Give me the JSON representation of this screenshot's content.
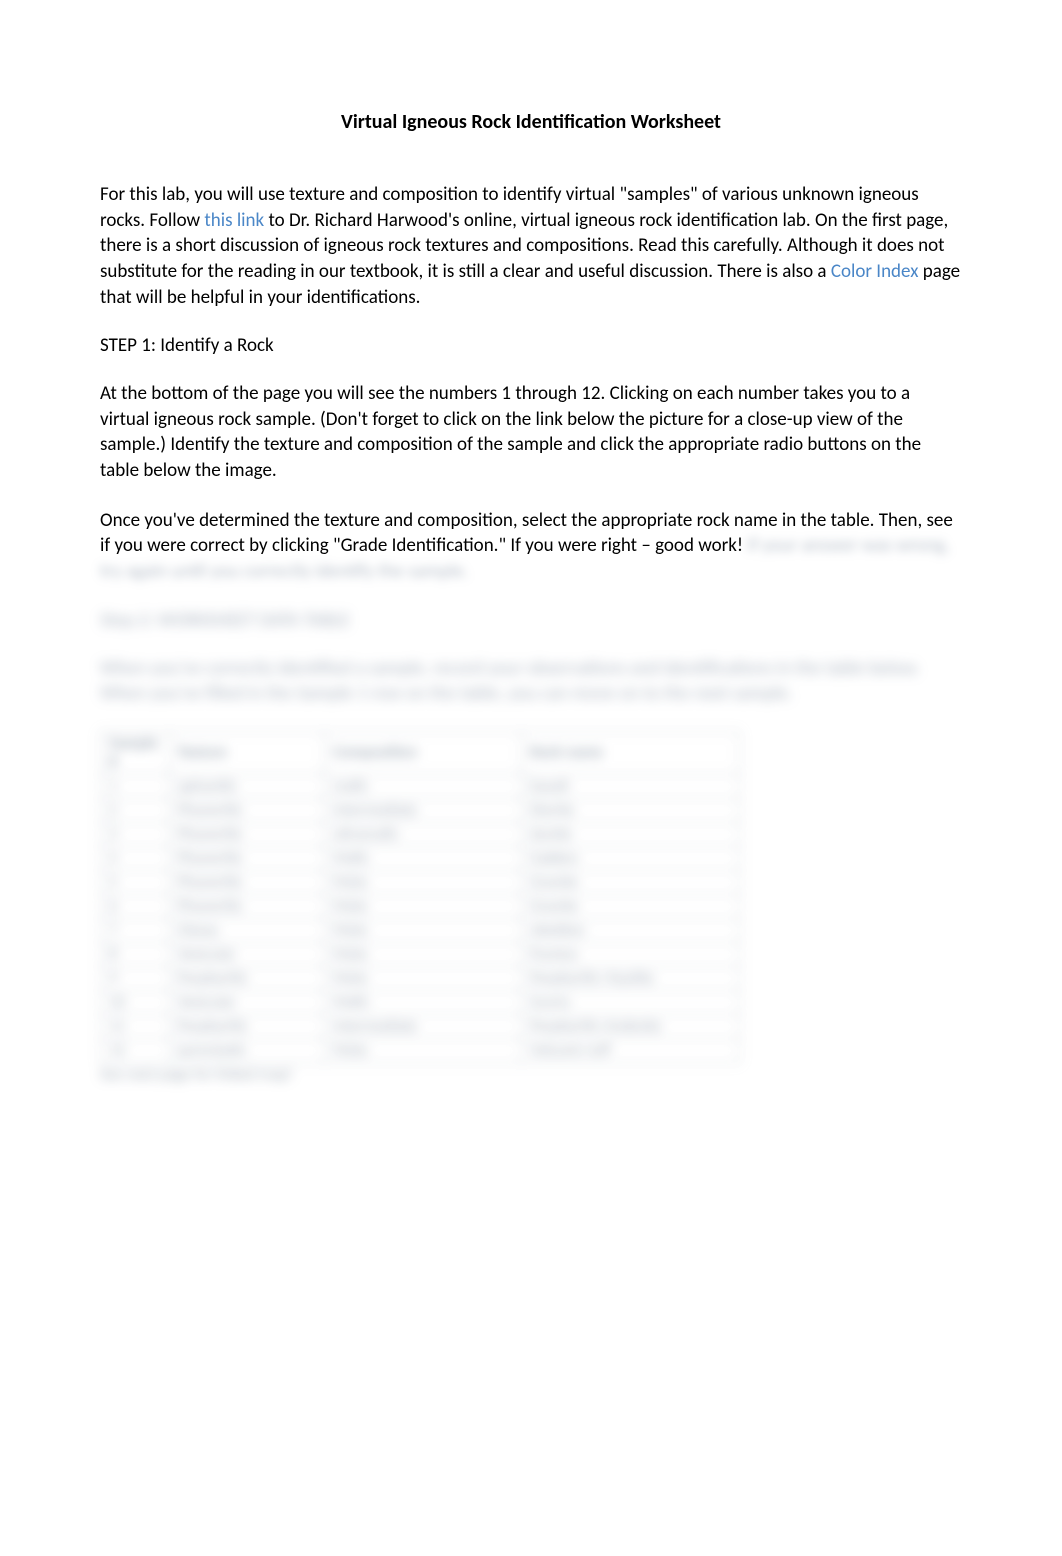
{
  "title": "Virtual Igneous Rock Identification Worksheet",
  "intro": {
    "part1": "For this lab, you will use texture and composition to identify virtual \"samples\" of various unknown igneous rocks.  Follow ",
    "link1": "this link",
    "part2": " to Dr. Richard Harwood's online, virtual igneous rock identification lab. On the first page, there is a short discussion of igneous rock textures and compositions.  Read this carefully. Although it does not substitute for the reading in our textbook, it is still a clear and useful discussion. There is also a ",
    "link2": "Color Index",
    "part3": " page that will be helpful in your identifications."
  },
  "step1": {
    "heading": "STEP 1: Identify a Rock",
    "para1": "At the bottom of the page you will see the numbers 1 through 12. Clicking on each number takes you to a virtual igneous rock sample. (Don't forget to click on the link below the picture for a close-up view of the sample.) Identify the texture and composition of the sample and click the appropriate radio buttons on the table below the image.",
    "para2a": "Once you've determined the texture and composition, select the appropriate rock name in the table.  Then, see if you were correct by clicking \"Grade Identification.\" If you were right – good work!  ",
    "para2b": "If your answer was wrong, try again until you correctly identify the sample."
  },
  "blur": {
    "step2_heading": "Step 2: WORKSHEET DATA TABLE",
    "step2_para": "When you've correctly identified a sample, record your observations and identifications in the table below.  When you've filled in the Sample 1 row on the table, you can move on to the next sample.",
    "table": {
      "headers": [
        "Sample #",
        "Texture",
        "Composition",
        "Rock name"
      ],
      "rows": [
        [
          "1",
          "aphanitic",
          "mafic",
          "basalt"
        ],
        [
          "2",
          "Phaneritic",
          "intermediate",
          "Diorite"
        ],
        [
          "3",
          "Phaneritic",
          "ultramafic",
          "dunite"
        ],
        [
          "4",
          "Phaneritic",
          "Mafic",
          "Gabbro"
        ],
        [
          "5",
          "Phaneritic",
          "Felsic",
          "Granite"
        ],
        [
          "6",
          "Phaneritic",
          "Felsic",
          "Granite"
        ],
        [
          "7",
          "Glassy",
          "Felsic",
          "obsidian"
        ],
        [
          "8",
          "Vesicular",
          "Felsic",
          "Pumice"
        ],
        [
          "9",
          "Porphyritic",
          "Felsic",
          "Porphyritic rhyolite"
        ],
        [
          "10",
          "Vesicular",
          "Mafic",
          "Scoria"
        ],
        [
          "11",
          "Porphyritic",
          "intermediate",
          "Porphyritic Andesite"
        ],
        [
          "12",
          "pyroclastic",
          "Felsic",
          "Volcanic tuff"
        ]
      ]
    },
    "footnote": "See next page for linked map!"
  },
  "colors": {
    "link": "#4a86c7",
    "text": "#000000",
    "blur_text": "#6a7a90",
    "table_border": "#9aa6b3",
    "background": "#ffffff"
  },
  "typography": {
    "body_fontsize": 19,
    "title_fontsize": 20,
    "table_fontsize": 16,
    "font_family": "Calibri"
  }
}
